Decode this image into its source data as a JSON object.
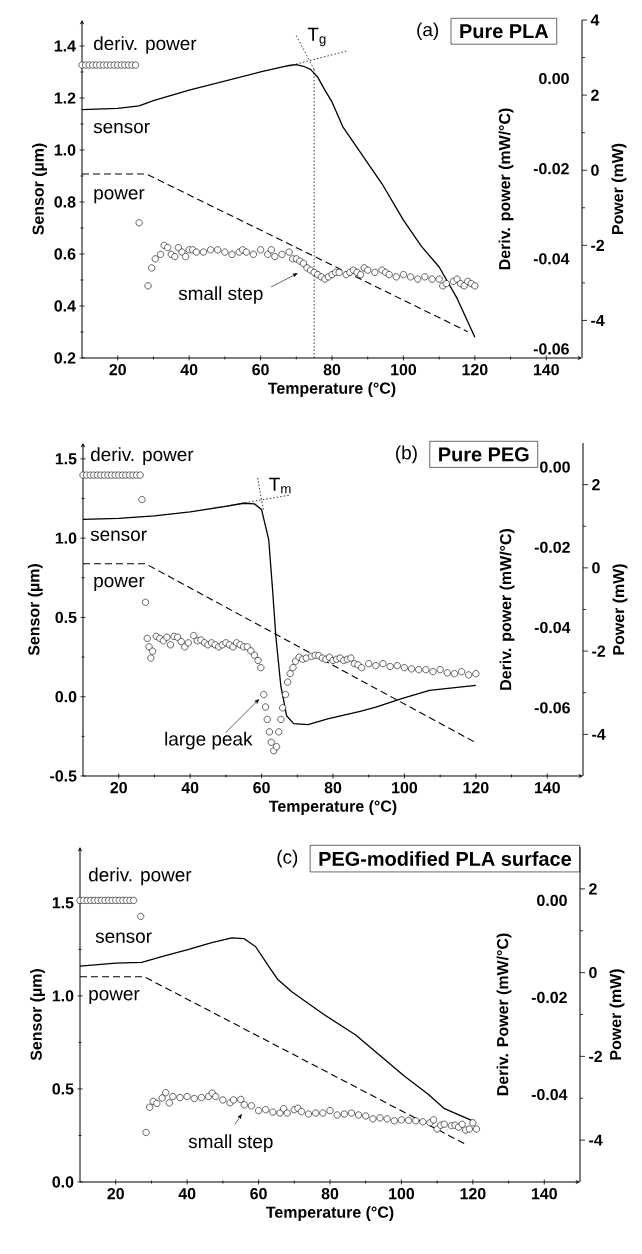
{
  "chart_data": [
    {
      "type": "line",
      "title": "Pure PLA",
      "xlabel": "Temperature (°C)",
      "ylabel": "Sensor (µm)",
      "y2label": "Deriv. power (mW/°C)",
      "y3label": "Power (mW)",
      "annotations": [
        "(a)",
        "small step",
        {
          "text": "T$_{g}$",
          "x": 75,
          "y": 1.31
        }
      ],
      "xlim": [
        10,
        150
      ],
      "xticks": [
        20,
        40,
        60,
        80,
        100,
        120,
        140
      ],
      "ylim": [
        0.2,
        1.5
      ],
      "yticks": [
        {
          "value": 0.2,
          "label": "0.2"
        },
        {
          "value": 0.4,
          "label": "0.4"
        },
        {
          "value": 0.6,
          "label": "0.6"
        },
        {
          "value": 0.8,
          "label": "0.8"
        },
        {
          "value": 1.0,
          "label": "1.0"
        },
        {
          "value": 1.2,
          "label": "1.2"
        },
        {
          "value": 1.4,
          "label": "1.4"
        }
      ],
      "y2lim": [
        -0.062,
        0.013
      ],
      "y2ticks": [
        {
          "value": 0,
          "label": "0.00"
        },
        {
          "value": -0.02,
          "label": "-0.02"
        },
        {
          "value": -0.04,
          "label": "-0.04"
        },
        {
          "value": -0.06,
          "label": "-0.06"
        }
      ],
      "y3lim": [
        -5,
        4
      ],
      "y3ticks": [
        4,
        2,
        0,
        -2,
        -4
      ],
      "series": [
        {
          "name": "sensor",
          "color": "#000000",
          "line_style": "solid",
          "x": [
            10,
            20,
            26,
            30,
            40,
            50,
            60,
            68,
            70,
            72,
            74,
            76,
            78,
            80,
            83,
            89,
            94,
            100,
            105,
            110,
            115,
            120
          ],
          "values": [
            1.155,
            1.16,
            1.17,
            1.19,
            1.23,
            1.265,
            1.3,
            1.325,
            1.328,
            1.322,
            1.31,
            1.28,
            1.23,
            1.185,
            1.09,
            0.97,
            0.87,
            0.73,
            0.63,
            0.55,
            0.43,
            0.28
          ]
        },
        {
          "name": "power",
          "axis": "y3",
          "color": "#000000",
          "line_style": "dashed",
          "x": [
            10,
            28,
            118
          ],
          "values": [
            -0.1,
            -0.1,
            -4.3
          ]
        },
        {
          "name": "deriv. power",
          "type": "scatter",
          "axis": "y2",
          "color": "#000000",
          "marker": "circle",
          "x": [
            10,
            11,
            12,
            13,
            14,
            15,
            16,
            17,
            18,
            19,
            20,
            21,
            22,
            23,
            24,
            25,
            26,
            28.5,
            29.5,
            30.5,
            32,
            33,
            34,
            35,
            36,
            37,
            38,
            39,
            40,
            41,
            42,
            44,
            46,
            48,
            50,
            52,
            54,
            55,
            56,
            58,
            60,
            62,
            63,
            64,
            66,
            68,
            69,
            70,
            71,
            72,
            73,
            74,
            75,
            76,
            77,
            78,
            79,
            80,
            81,
            82,
            84,
            85,
            86,
            87,
            88,
            89,
            90,
            92,
            94,
            95,
            96,
            98,
            100,
            102,
            104,
            106,
            108,
            110,
            111,
            112,
            114,
            115,
            116,
            117,
            118,
            119,
            120
          ],
          "values": [
            0.003,
            0.003,
            0.003,
            0.003,
            0.003,
            0.003,
            0.003,
            0.003,
            0.003,
            0.003,
            0.003,
            0.003,
            0.003,
            0.003,
            0.003,
            0.003,
            -0.032,
            -0.046,
            -0.042,
            -0.04,
            -0.039,
            -0.037,
            -0.0375,
            -0.039,
            -0.0395,
            -0.0375,
            -0.0385,
            -0.0395,
            -0.038,
            -0.038,
            -0.0385,
            -0.0385,
            -0.038,
            -0.038,
            -0.0385,
            -0.039,
            -0.0385,
            -0.038,
            -0.0385,
            -0.039,
            -0.038,
            -0.039,
            -0.038,
            -0.0395,
            -0.039,
            -0.0385,
            -0.04,
            -0.04,
            -0.0405,
            -0.041,
            -0.042,
            -0.0425,
            -0.043,
            -0.0435,
            -0.044,
            -0.0445,
            -0.044,
            -0.0435,
            -0.043,
            -0.043,
            -0.0435,
            -0.043,
            -0.0425,
            -0.043,
            -0.0435,
            -0.042,
            -0.0425,
            -0.043,
            -0.0425,
            -0.043,
            -0.0435,
            -0.044,
            -0.0435,
            -0.044,
            -0.0445,
            -0.044,
            -0.0445,
            -0.0445,
            -0.046,
            -0.0455,
            -0.045,
            -0.0445,
            -0.0455,
            -0.046,
            -0.045,
            -0.0455,
            -0.046
          ]
        },
        {
          "color": "#000000",
          "line_style": "dotted",
          "x": [
            70,
            75
          ],
          "values": [
            1.44,
            1.31
          ]
        },
        {
          "color": "#000000",
          "line_style": "dotted",
          "x": [
            67,
            84
          ],
          "values": [
            1.32,
            1.38
          ]
        },
        {
          "color": "#000000",
          "line_style": "dotted",
          "x": [
            75,
            75
          ],
          "values": [
            1.31,
            0.2
          ]
        }
      ]
    },
    {
      "type": "line",
      "title": "Pure PEG",
      "xlabel": "Temperature (°C)",
      "ylabel": "Sensor (µm)",
      "y2label": "Deriv. power (mW/°C)",
      "y3label": "Power (mW)",
      "annotations": [
        "(b)",
        {
          "text": "large peak",
          "x": 60.6,
          "y": -0.0567
        },
        {
          "text": "T$_{m}$",
          "x": 60,
          "y": 1.25
        }
      ],
      "xlim": [
        10,
        150
      ],
      "xticks": [
        20,
        40,
        60,
        80,
        100,
        120,
        140
      ],
      "ylim": [
        -0.5,
        1.6
      ],
      "yticks": [
        {
          "value": -0.5,
          "label": "-0.5"
        },
        {
          "value": 0.0,
          "label": "0.0"
        },
        {
          "value": 0.5,
          "label": "0.5"
        },
        {
          "value": 1.0,
          "label": "1.0"
        },
        {
          "value": 1.5,
          "label": "1.5"
        }
      ],
      "y2lim": [
        -0.077,
        0.006
      ],
      "y2ticks": [
        {
          "value": 0,
          "label": "0.00"
        },
        {
          "value": -0.02,
          "label": "-0.02"
        },
        {
          "value": -0.04,
          "label": "-0.04"
        },
        {
          "value": -0.06,
          "label": "-0.06"
        }
      ],
      "y3lim": [
        -5,
        3
      ],
      "y3ticks": [
        2,
        0,
        -2,
        -4
      ],
      "series": [
        {
          "name": "sensor",
          "color": "#000000",
          "line_style": "solid",
          "x": [
            10,
            20,
            30,
            40,
            50,
            55,
            58,
            60,
            62,
            63,
            64,
            65.4,
            67,
            69,
            73,
            78.5,
            87.6,
            92,
            99,
            107,
            120
          ],
          "values": [
            1.118,
            1.124,
            1.14,
            1.166,
            1.2,
            1.22,
            1.216,
            1.18,
            0.99,
            0.7,
            0.38,
            0.066,
            -0.12,
            -0.17,
            -0.176,
            -0.14,
            -0.092,
            -0.066,
            -0.013,
            0.04,
            0.071
          ]
        },
        {
          "name": "power",
          "axis": "y3",
          "color": "#000000",
          "line_style": "dashed",
          "x": [
            10,
            27.5,
            120
          ],
          "values": [
            0.1,
            0.1,
            -4.2
          ]
        },
        {
          "name": "deriv. power",
          "type": "scatter",
          "axis": "y2",
          "color": "#000000",
          "marker": "circle",
          "x": [
            10,
            11,
            12,
            13,
            14,
            15,
            16,
            17,
            18,
            19,
            20,
            21,
            22,
            23,
            24,
            25,
            26,
            26.5,
            27.5,
            28,
            28.5,
            29,
            29.5,
            30.5,
            31.5,
            32.5,
            33.5,
            34.5,
            35.5,
            36.5,
            37.5,
            38.5,
            39.5,
            41,
            42,
            43,
            44,
            45,
            46,
            47,
            48,
            49,
            50,
            51,
            52,
            53,
            54,
            55,
            56,
            57,
            58,
            59,
            59.8,
            60.6,
            61.1,
            61.6,
            62.2,
            62.7,
            63.4,
            64.2,
            64.8,
            65.4,
            65.9,
            66.7,
            67.3,
            68,
            68.8,
            69.5,
            70.5,
            71.5,
            72.5,
            74,
            75,
            76,
            77,
            78,
            79,
            80,
            81,
            82,
            83,
            84,
            85,
            86,
            87,
            88,
            90,
            92,
            94,
            96,
            98,
            100,
            102,
            104,
            106,
            108,
            110,
            112,
            114,
            116,
            118,
            120
          ],
          "values": [
            -0.002,
            -0.002,
            -0.002,
            -0.002,
            -0.002,
            -0.002,
            -0.002,
            -0.002,
            -0.002,
            -0.002,
            -0.002,
            -0.002,
            -0.002,
            -0.002,
            -0.002,
            -0.002,
            -0.002,
            -0.0081,
            -0.0337,
            -0.0427,
            -0.0448,
            -0.0476,
            -0.0459,
            -0.0422,
            -0.0427,
            -0.0433,
            -0.0424,
            -0.0443,
            -0.0422,
            -0.0424,
            -0.0435,
            -0.0448,
            -0.0438,
            -0.042,
            -0.0433,
            -0.0431,
            -0.0438,
            -0.0443,
            -0.0438,
            -0.0443,
            -0.0448,
            -0.0443,
            -0.0438,
            -0.0443,
            -0.0448,
            -0.0438,
            -0.0443,
            -0.0448,
            -0.0448,
            -0.0458,
            -0.0469,
            -0.0482,
            -0.05,
            -0.0567,
            -0.0598,
            -0.0629,
            -0.066,
            -0.0686,
            -0.0707,
            -0.0697,
            -0.066,
            -0.0629,
            -0.06,
            -0.0567,
            -0.0536,
            -0.0515,
            -0.05,
            -0.0484,
            -0.0474,
            -0.0479,
            -0.0476,
            -0.0472,
            -0.0469,
            -0.047,
            -0.0476,
            -0.0479,
            -0.0474,
            -0.0482,
            -0.0479,
            -0.0476,
            -0.0482,
            -0.0479,
            -0.0476,
            -0.049,
            -0.0493,
            -0.05,
            -0.049,
            -0.0495,
            -0.049,
            -0.0497,
            -0.0495,
            -0.05,
            -0.0503,
            -0.0505,
            -0.0505,
            -0.051,
            -0.0505,
            -0.0513,
            -0.0515,
            -0.051,
            -0.0518,
            -0.0515
          ]
        },
        {
          "color": "#000000",
          "line_style": "dotted",
          "x": [
            58.9,
            60.5
          ],
          "values": [
            1.38,
            1.18
          ]
        },
        {
          "color": "#000000",
          "line_style": "dotted",
          "x": [
            46.6,
            67.6
          ],
          "values": [
            1.19,
            1.27
          ]
        }
      ]
    },
    {
      "type": "line",
      "title": "PEG-modified PLA surface",
      "xlabel": "Temperature (°C)",
      "ylabel": "Sensor (µm)",
      "y2label": "Deriv. Power (mW/°C)",
      "y3label": "Power (mW)",
      "annotations": [
        "(c)",
        "small step"
      ],
      "xlim": [
        10,
        150
      ],
      "xticks": [
        20,
        40,
        60,
        80,
        100,
        120,
        140
      ],
      "ylim": [
        0,
        1.8
      ],
      "yticks": [
        {
          "value": 0.0,
          "label": "0.0"
        },
        {
          "value": 0.5,
          "label": "0.5"
        },
        {
          "value": 1.0,
          "label": "1.0"
        },
        {
          "value": 1.5,
          "label": "1.5"
        }
      ],
      "y2lim": [
        -0.058,
        0.011
      ],
      "y2ticks": [
        {
          "value": 0,
          "label": "0.00"
        },
        {
          "value": -0.02,
          "label": "-0.02"
        },
        {
          "value": -0.04,
          "label": "-0.04"
        }
      ],
      "y3lim": [
        -5,
        3
      ],
      "y3ticks": [
        2,
        0,
        -2,
        -4
      ],
      "series": [
        {
          "name": "sensor",
          "color": "#000000",
          "line_style": "solid",
          "x": [
            10,
            20,
            27.3,
            33.4,
            40.2,
            46.9,
            52.5,
            55.9,
            59.2,
            62.6,
            65.4,
            69.3,
            78.3,
            87.2,
            94,
            100.7,
            107.4,
            111.9,
            119.8
          ],
          "values": [
            1.16,
            1.176,
            1.18,
            1.213,
            1.248,
            1.286,
            1.312,
            1.308,
            1.264,
            1.165,
            1.088,
            1.022,
            0.9,
            0.79,
            0.68,
            0.571,
            0.473,
            0.396,
            0.33
          ]
        },
        {
          "name": "power",
          "axis": "y3",
          "color": "#000000",
          "line_style": "dashed",
          "x": [
            10,
            28,
            118
          ],
          "values": [
            -0.1,
            -0.1,
            -4.1
          ]
        },
        {
          "name": "deriv. power",
          "type": "scatter",
          "axis": "y2",
          "color": "#000000",
          "marker": "circle",
          "x": [
            10,
            11,
            12,
            13,
            14,
            15,
            16,
            17,
            18,
            19,
            20,
            21,
            22,
            23,
            24,
            25,
            27,
            28.5,
            29.5,
            30.5,
            31.5,
            33,
            34,
            35,
            36,
            38,
            40,
            42,
            44,
            46,
            47,
            48,
            50,
            52,
            53,
            55,
            56,
            58,
            60,
            62,
            64,
            66,
            67,
            68,
            70,
            71,
            72,
            74,
            76,
            78,
            80,
            82,
            84,
            86,
            88,
            90,
            92,
            94,
            96,
            98,
            100,
            102,
            104,
            106,
            108,
            109,
            110,
            111,
            112,
            114,
            115,
            116,
            117,
            118,
            119,
            120,
            121
          ],
          "values": [
            0.0,
            0.0,
            0.0,
            0.0,
            0.0,
            0.0,
            0.0,
            0.0,
            0.0,
            0.0,
            0.0,
            0.0,
            0.0,
            0.0,
            0.0,
            0.0,
            -0.0033,
            -0.0478,
            -0.0426,
            -0.0414,
            -0.0418,
            -0.0407,
            -0.0396,
            -0.0417,
            -0.0404,
            -0.0406,
            -0.0404,
            -0.0408,
            -0.0406,
            -0.0404,
            -0.0397,
            -0.0404,
            -0.0411,
            -0.0417,
            -0.0411,
            -0.041,
            -0.0421,
            -0.0423,
            -0.0433,
            -0.0431,
            -0.0436,
            -0.0438,
            -0.0429,
            -0.0438,
            -0.0431,
            -0.0428,
            -0.0435,
            -0.044,
            -0.0438,
            -0.0438,
            -0.0433,
            -0.0442,
            -0.044,
            -0.0438,
            -0.0442,
            -0.0444,
            -0.045,
            -0.0448,
            -0.045,
            -0.0454,
            -0.0452,
            -0.0453,
            -0.0454,
            -0.0456,
            -0.0458,
            -0.0452,
            -0.0471,
            -0.0463,
            -0.0461,
            -0.0464,
            -0.0463,
            -0.0467,
            -0.0461,
            -0.0473,
            -0.0471,
            -0.0458,
            -0.0471
          ]
        }
      ]
    }
  ]
}
